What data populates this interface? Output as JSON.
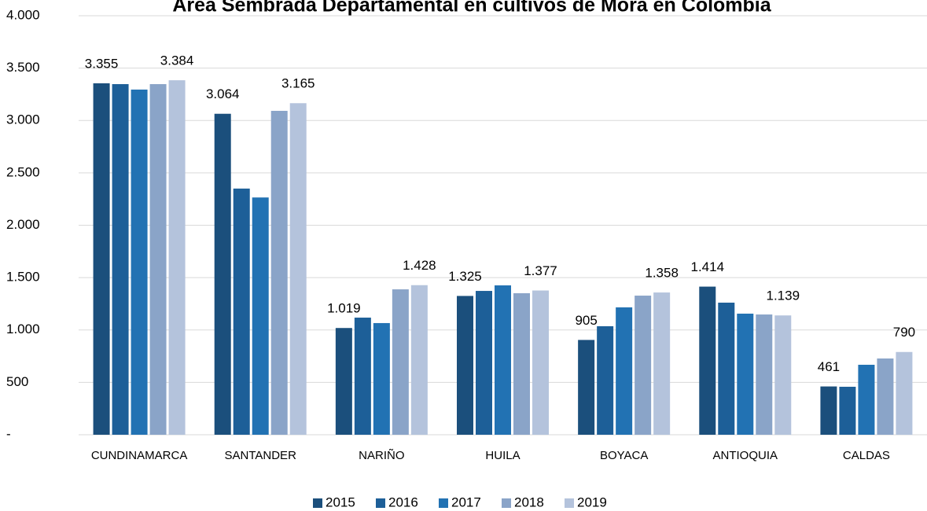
{
  "chart_data": {
    "type": "bar",
    "title": "Área Sembrada Departamental en cultivos de Mora en Colombia",
    "categories": [
      "CUNDINAMARCA",
      "SANTANDER",
      "NARIÑO",
      "HUILA",
      "BOYACA",
      "ANTIOQUIA",
      "CALDAS"
    ],
    "series": [
      {
        "name": "2015",
        "color": "#1b4f7c",
        "values": [
          3355,
          3064,
          1019,
          1325,
          905,
          1414,
          461
        ],
        "value_labels": [
          "3.355",
          "3.064",
          "1.019",
          "1.325",
          "905",
          "1.414",
          "461"
        ]
      },
      {
        "name": "2016",
        "color": "#1d5f98",
        "values": [
          3347,
          2350,
          1118,
          1373,
          1036,
          1261,
          458
        ]
      },
      {
        "name": "2017",
        "color": "#2272b3",
        "values": [
          3295,
          2265,
          1066,
          1426,
          1216,
          1156,
          668
        ]
      },
      {
        "name": "2018",
        "color": "#8aa4c8",
        "values": [
          3347,
          3092,
          1388,
          1351,
          1328,
          1148,
          728
        ]
      },
      {
        "name": "2019",
        "color": "#b4c3dc",
        "values": [
          3384,
          3165,
          1428,
          1377,
          1358,
          1139,
          790
        ],
        "value_labels": [
          "3.384",
          "3.165",
          "1.428",
          "1.377",
          "1.358",
          "1.139",
          "790"
        ]
      }
    ],
    "ylim": [
      0,
      4000
    ],
    "yticks": [
      {
        "value": 0,
        "label": "-"
      },
      500,
      {
        "value": 1000,
        "label": "1.000"
      },
      {
        "value": 1500,
        "label": "1.500"
      },
      {
        "value": 2000,
        "label": "2.000"
      },
      {
        "value": 2500,
        "label": "2.500"
      },
      {
        "value": 3000,
        "label": "3.000"
      },
      {
        "value": 3500,
        "label": "3.500"
      },
      {
        "value": 4000,
        "label": "4.000"
      }
    ],
    "grid": true,
    "legend": "bottom"
  }
}
